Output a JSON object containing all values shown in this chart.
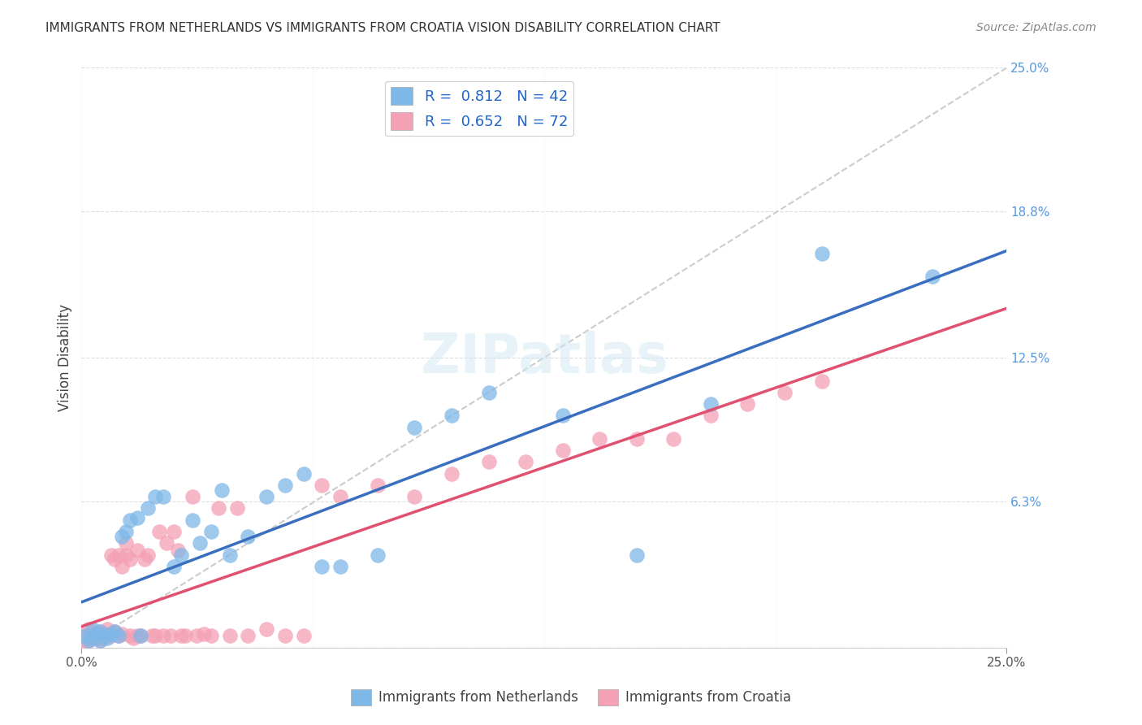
{
  "title": "IMMIGRANTS FROM NETHERLANDS VS IMMIGRANTS FROM CROATIA VISION DISABILITY CORRELATION CHART",
  "source": "Source: ZipAtlas.com",
  "xlabel_bottom": "",
  "ylabel": "Vision Disability",
  "xlim": [
    0,
    0.25
  ],
  "ylim": [
    0,
    0.25
  ],
  "xticks": [
    0.0,
    0.25
  ],
  "xticklabels": [
    "0.0%",
    "25.0%"
  ],
  "ytick_right": [
    0.0,
    0.063,
    0.125,
    0.188,
    0.25
  ],
  "ytick_right_labels": [
    "",
    "6.3%",
    "12.5%",
    "18.8%",
    "25.0%"
  ],
  "legend_r1": "R =  0.812   N = 42",
  "legend_r2": "R =  0.652   N = 72",
  "legend_label1": "Immigrants from Netherlands",
  "legend_label2": "Immigrants from Croatia",
  "color_netherlands": "#7eb8e8",
  "color_croatia": "#f4a0b5",
  "color_netherlands_line": "#3a6fbf",
  "color_croatia_line": "#e05070",
  "R_netherlands": 0.812,
  "N_netherlands": 42,
  "R_croatia": 0.652,
  "N_croatia": 72,
  "netherlands_x": [
    0.001,
    0.002,
    0.003,
    0.003,
    0.004,
    0.005,
    0.005,
    0.006,
    0.007,
    0.008,
    0.009,
    0.01,
    0.011,
    0.012,
    0.013,
    0.015,
    0.016,
    0.018,
    0.02,
    0.022,
    0.025,
    0.027,
    0.03,
    0.032,
    0.035,
    0.038,
    0.04,
    0.045,
    0.05,
    0.055,
    0.06,
    0.065,
    0.07,
    0.08,
    0.09,
    0.1,
    0.11,
    0.13,
    0.15,
    0.17,
    0.2,
    0.23
  ],
  "netherlands_y": [
    0.005,
    0.003,
    0.008,
    0.004,
    0.006,
    0.007,
    0.003,
    0.005,
    0.004,
    0.006,
    0.007,
    0.005,
    0.048,
    0.05,
    0.055,
    0.056,
    0.005,
    0.06,
    0.065,
    0.065,
    0.035,
    0.04,
    0.055,
    0.045,
    0.05,
    0.068,
    0.04,
    0.048,
    0.065,
    0.07,
    0.075,
    0.035,
    0.035,
    0.04,
    0.095,
    0.1,
    0.11,
    0.1,
    0.04,
    0.105,
    0.17,
    0.16
  ],
  "croatia_x": [
    0.001,
    0.001,
    0.002,
    0.002,
    0.002,
    0.003,
    0.003,
    0.003,
    0.004,
    0.004,
    0.004,
    0.005,
    0.005,
    0.005,
    0.006,
    0.006,
    0.007,
    0.007,
    0.008,
    0.008,
    0.009,
    0.009,
    0.01,
    0.01,
    0.011,
    0.011,
    0.012,
    0.012,
    0.013,
    0.013,
    0.014,
    0.015,
    0.015,
    0.016,
    0.017,
    0.018,
    0.019,
    0.02,
    0.021,
    0.022,
    0.023,
    0.024,
    0.025,
    0.026,
    0.027,
    0.028,
    0.03,
    0.031,
    0.033,
    0.035,
    0.037,
    0.04,
    0.042,
    0.045,
    0.05,
    0.055,
    0.06,
    0.065,
    0.07,
    0.08,
    0.09,
    0.1,
    0.11,
    0.12,
    0.13,
    0.14,
    0.15,
    0.16,
    0.17,
    0.18,
    0.19,
    0.2
  ],
  "croatia_y": [
    0.005,
    0.003,
    0.008,
    0.005,
    0.003,
    0.006,
    0.004,
    0.005,
    0.005,
    0.004,
    0.006,
    0.007,
    0.003,
    0.006,
    0.005,
    0.004,
    0.006,
    0.008,
    0.04,
    0.005,
    0.038,
    0.007,
    0.005,
    0.04,
    0.035,
    0.006,
    0.045,
    0.04,
    0.005,
    0.038,
    0.004,
    0.042,
    0.005,
    0.005,
    0.038,
    0.04,
    0.005,
    0.005,
    0.05,
    0.005,
    0.045,
    0.005,
    0.05,
    0.042,
    0.005,
    0.005,
    0.065,
    0.005,
    0.006,
    0.005,
    0.06,
    0.005,
    0.06,
    0.005,
    0.008,
    0.005,
    0.005,
    0.07,
    0.065,
    0.07,
    0.065,
    0.075,
    0.08,
    0.08,
    0.085,
    0.09,
    0.09,
    0.09,
    0.1,
    0.105,
    0.11,
    0.115
  ]
}
